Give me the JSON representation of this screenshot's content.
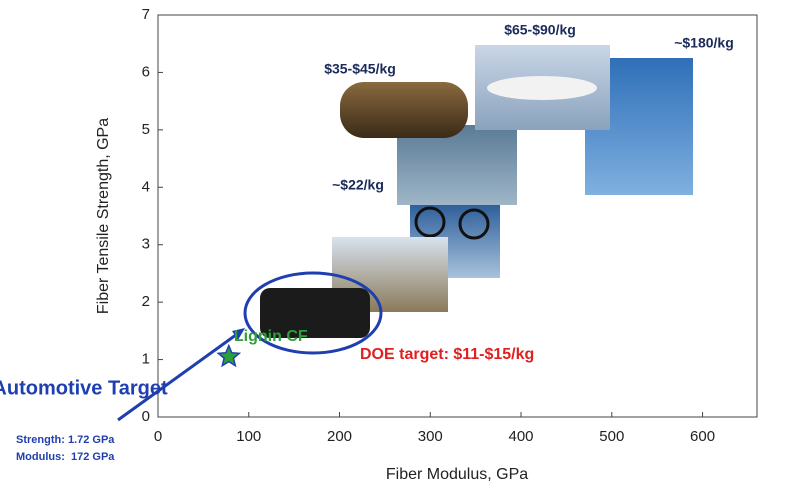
{
  "chart_data": {
    "type": "scatter",
    "xlabel": "Fiber Modulus, GPa",
    "ylabel": "Fiber Tensile Strength, GPa",
    "xlim": [
      0,
      660
    ],
    "ylim": [
      0,
      7
    ],
    "xticks": [
      0,
      100,
      200,
      300,
      400,
      500,
      600
    ],
    "yticks": [
      0,
      1,
      2,
      3,
      4,
      5,
      6,
      7
    ],
    "series": [
      {
        "name": "Lignin CF",
        "color": "#2e9e3a",
        "x": [
          78
        ],
        "values": [
          1.05
        ]
      }
    ],
    "annotations": [
      "$35-$45/kg",
      "$65-$90/kg",
      "~$180/kg",
      "~$22/kg",
      "DOE target: $11-$15/kg",
      "Automotive Target",
      "Strength: 1.72 GPa",
      "Modulus:  172 GPa"
    ]
  }
}
